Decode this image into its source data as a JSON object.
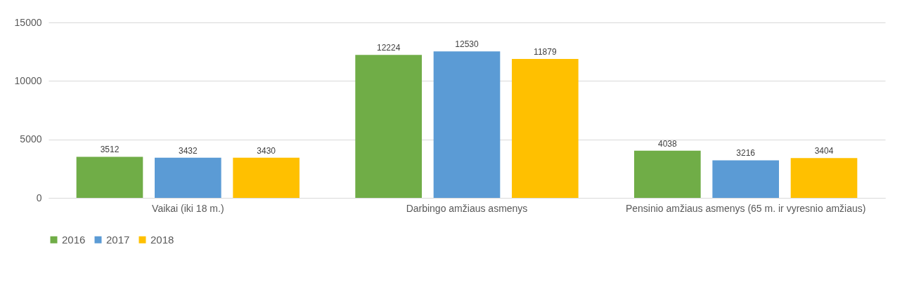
{
  "chart_data": {
    "type": "bar",
    "categories": [
      "Vaikai (iki 18 m.)",
      "Darbingo amžiaus asmenys",
      "Pensinio amžiaus asmenys (65 m. ir vyresnio amžiaus)"
    ],
    "series": [
      {
        "name": "2016",
        "color": "#70ad47",
        "values": [
          3512,
          12224,
          4038
        ]
      },
      {
        "name": "2017",
        "color": "#5b9bd5",
        "values": [
          3432,
          12530,
          3216
        ]
      },
      {
        "name": "2018",
        "color": "#ffc000",
        "values": [
          3430,
          11879,
          3404
        ]
      }
    ],
    "ylim": [
      0,
      15000
    ],
    "yticks": [
      0,
      5000,
      10000,
      15000
    ],
    "grid": "y",
    "legend": "bottom",
    "data_labels": true
  }
}
